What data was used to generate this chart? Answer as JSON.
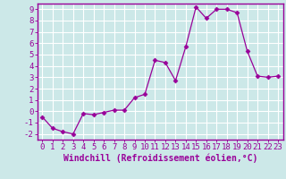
{
  "x": [
    0,
    1,
    2,
    3,
    4,
    5,
    6,
    7,
    8,
    9,
    10,
    11,
    12,
    13,
    14,
    15,
    16,
    17,
    18,
    19,
    20,
    21,
    22,
    23
  ],
  "y": [
    -0.5,
    -1.5,
    -1.8,
    -2.0,
    -0.2,
    -0.3,
    -0.1,
    0.1,
    0.1,
    1.2,
    1.5,
    4.5,
    4.3,
    2.7,
    5.7,
    9.2,
    8.2,
    9.0,
    9.0,
    8.7,
    5.3,
    3.1,
    3.0,
    3.1
  ],
  "line_color": "#990099",
  "marker": "D",
  "marker_size": 2.5,
  "bg_color": "#cce8e8",
  "grid_color": "#ffffff",
  "xlabel": "Windchill (Refroidissement éolien,°C)",
  "xlim": [
    -0.5,
    23.5
  ],
  "ylim": [
    -2.5,
    9.5
  ],
  "xticks": [
    0,
    1,
    2,
    3,
    4,
    5,
    6,
    7,
    8,
    9,
    10,
    11,
    12,
    13,
    14,
    15,
    16,
    17,
    18,
    19,
    20,
    21,
    22,
    23
  ],
  "yticks": [
    -2,
    -1,
    0,
    1,
    2,
    3,
    4,
    5,
    6,
    7,
    8,
    9
  ],
  "tick_color": "#990099",
  "xlabel_fontsize": 7.0,
  "tick_fontsize": 6.5,
  "spine_color": "#990099",
  "title_bar_color": "#8800aa"
}
